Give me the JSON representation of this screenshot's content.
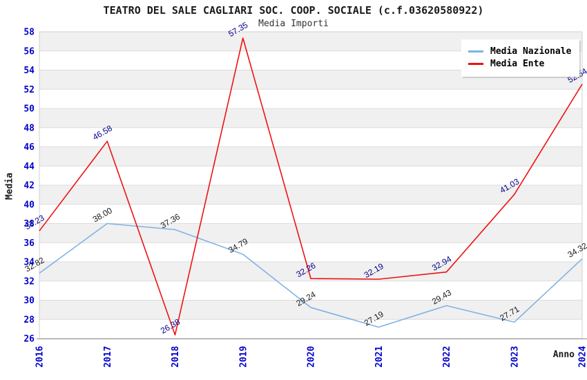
{
  "title": "TEATRO DEL SALE CAGLIARI SOC. COOP. SOCIALE (c.f.03620580922)",
  "subtitle": "Media Importi",
  "chart_data": {
    "type": "line",
    "x": [
      2016,
      2017,
      2018,
      2019,
      2020,
      2021,
      2022,
      2023,
      2024
    ],
    "xlabel": "Anno",
    "ylabel": "Media",
    "ylim": [
      26,
      58
    ],
    "ytick_step": 2,
    "grid": true,
    "striped_bands": true,
    "legend_position": "top-right",
    "series": [
      {
        "name": "Media Nazionale",
        "color": "#7fb2e5",
        "label_color": "#1a1a1a",
        "values": [
          32.82,
          38.0,
          37.36,
          34.79,
          29.24,
          27.19,
          29.43,
          27.71,
          34.32
        ]
      },
      {
        "name": "Media Ente",
        "color": "#ee1111",
        "label_color": "#00008b",
        "values": [
          37.23,
          46.58,
          26.38,
          57.35,
          32.26,
          32.19,
          32.94,
          41.03,
          52.54
        ]
      }
    ],
    "tick_color": "#0000cd",
    "band_color": "#f0f0f0",
    "gridline_color": "#dcdcdc",
    "frame_color": "#d0d0d0",
    "baseline_color": "#909090"
  }
}
